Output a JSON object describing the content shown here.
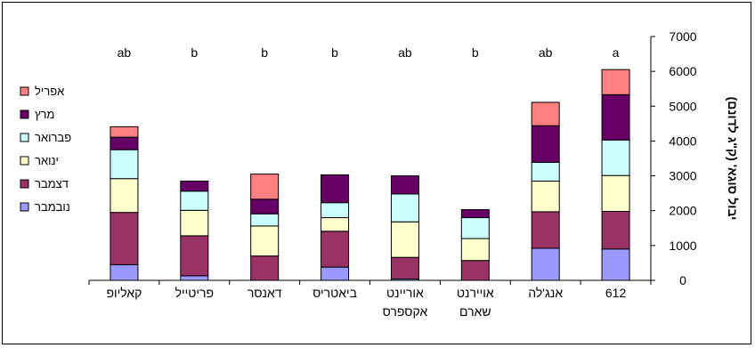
{
  "chart_data": {
    "type": "bar",
    "stacked": true,
    "orientation": "rtl",
    "ylabel": "יבול סוגא' (ק\"ג לדונם)",
    "xlabel": "",
    "ylim": [
      0,
      7000
    ],
    "yticks": [
      0,
      1000,
      2000,
      3000,
      4000,
      5000,
      6000,
      7000
    ],
    "grid": false,
    "legend_position": "left",
    "categories": [
      "612",
      "אנג'לה",
      "אויירנט שארם",
      "אוריינט אקספרס",
      "ביאטריס",
      "דאנסר",
      "פריטייל",
      "קאליופ"
    ],
    "significance": [
      "a",
      "ab",
      "b",
      "ab",
      "b",
      "b",
      "b",
      "ab"
    ],
    "series": [
      {
        "name": "נובמבר",
        "color": "#9999ff",
        "values": [
          900,
          920,
          0,
          40,
          380,
          0,
          130,
          450
        ]
      },
      {
        "name": "דצמבר",
        "color": "#993366",
        "values": [
          1080,
          1050,
          570,
          620,
          1030,
          700,
          1150,
          1500
        ]
      },
      {
        "name": "ינואר",
        "color": "#ffffcc",
        "values": [
          1030,
          880,
          630,
          1020,
          390,
          860,
          730,
          970
        ]
      },
      {
        "name": "פברואר",
        "color": "#ccffff",
        "values": [
          1020,
          540,
          600,
          800,
          430,
          350,
          550,
          830
        ]
      },
      {
        "name": "מרץ",
        "color": "#660066",
        "values": [
          1300,
          1050,
          230,
          520,
          800,
          420,
          290,
          360
        ]
      },
      {
        "name": "אפריל",
        "color": "#ff8080",
        "values": [
          720,
          670,
          0,
          0,
          0,
          720,
          0,
          300
        ]
      }
    ]
  }
}
